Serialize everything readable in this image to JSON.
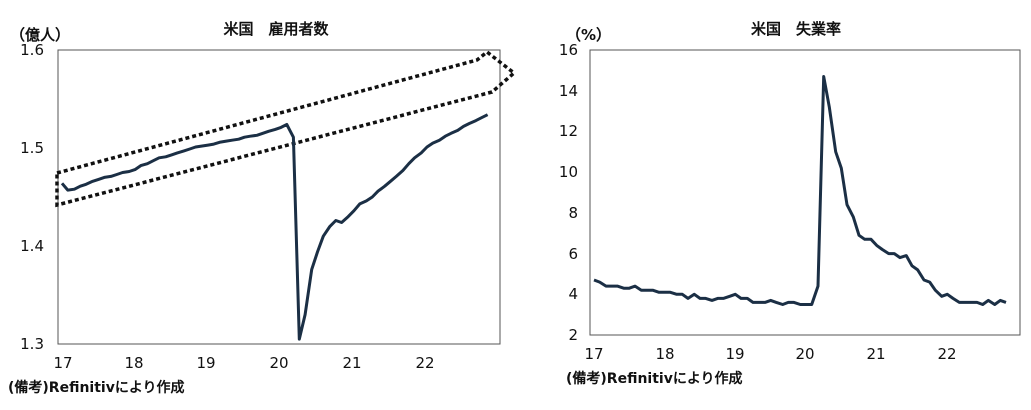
{
  "chart_data": [
    {
      "type": "line",
      "title": "米国　雇用者数",
      "ylabel": "（億人）",
      "ylim": [
        1.3,
        1.6
      ],
      "yticks": [
        "1.3",
        "1.4",
        "1.5",
        "1.6"
      ],
      "xlim": [
        17,
        23
      ],
      "xticks": [
        "17",
        "18",
        "19",
        "20",
        "21",
        "22"
      ],
      "grid": false,
      "line_color": "#1b2f45",
      "annotation": "dotted parallelogram band (trend channel) ending in an arrow tip",
      "source": "(備考)Refinitivにより作成",
      "series": [
        {
          "x": [
            17.0,
            17.08,
            17.17,
            17.25,
            17.33,
            17.42,
            17.5,
            17.58,
            17.67,
            17.75,
            17.83,
            17.92,
            18.0,
            18.08,
            18.17,
            18.25,
            18.33,
            18.42,
            18.5,
            18.58,
            18.67,
            18.75,
            18.83,
            18.92,
            19.0,
            19.08,
            19.17,
            19.25,
            19.33,
            19.42,
            19.5,
            19.58,
            19.67,
            19.75,
            19.83,
            19.92,
            20.0,
            20.08,
            20.17,
            20.25,
            20.33,
            20.42,
            20.5,
            20.58,
            20.67,
            20.75,
            20.83,
            20.92,
            21.0,
            21.08,
            21.17,
            21.25,
            21.33,
            21.42,
            21.5,
            21.58,
            21.67,
            21.75,
            21.83,
            21.92,
            22.0,
            22.08,
            22.17,
            22.25,
            22.33,
            22.42,
            22.5,
            22.58,
            22.67,
            22.75,
            22.83
          ],
          "y": [
            1.464,
            1.457,
            1.458,
            1.461,
            1.463,
            1.466,
            1.468,
            1.47,
            1.471,
            1.473,
            1.475,
            1.476,
            1.478,
            1.482,
            1.484,
            1.487,
            1.49,
            1.491,
            1.493,
            1.495,
            1.497,
            1.499,
            1.501,
            1.502,
            1.503,
            1.504,
            1.506,
            1.507,
            1.508,
            1.509,
            1.511,
            1.512,
            1.513,
            1.515,
            1.517,
            1.519,
            1.521,
            1.524,
            1.511,
            1.305,
            1.33,
            1.376,
            1.394,
            1.41,
            1.42,
            1.426,
            1.424,
            1.43,
            1.436,
            1.443,
            1.446,
            1.45,
            1.456,
            1.461,
            1.466,
            1.471,
            1.477,
            1.484,
            1.49,
            1.495,
            1.501,
            1.505,
            1.508,
            1.512,
            1.515,
            1.518,
            1.522,
            1.525,
            1.528,
            1.531,
            1.534
          ]
        }
      ]
    },
    {
      "type": "line",
      "title": "米国　失業率",
      "ylabel": "（%）",
      "ylim": [
        2,
        16
      ],
      "yticks": [
        "2",
        "4",
        "6",
        "8",
        "10",
        "12",
        "14",
        "16"
      ],
      "xlim": [
        17,
        23
      ],
      "xticks": [
        "17",
        "18",
        "19",
        "20",
        "21",
        "22"
      ],
      "grid": false,
      "line_color": "#1b2f45",
      "source": "(備考)Refinitivにより作成",
      "series": [
        {
          "x": [
            17.0,
            17.08,
            17.17,
            17.25,
            17.33,
            17.42,
            17.5,
            17.58,
            17.67,
            17.75,
            17.83,
            17.92,
            18.0,
            18.08,
            18.17,
            18.25,
            18.33,
            18.42,
            18.5,
            18.58,
            18.67,
            18.75,
            18.83,
            18.92,
            19.0,
            19.08,
            19.17,
            19.25,
            19.33,
            19.42,
            19.5,
            19.58,
            19.67,
            19.75,
            19.83,
            19.92,
            20.0,
            20.08,
            20.17,
            20.25,
            20.33,
            20.42,
            20.5,
            20.58,
            20.67,
            20.75,
            20.83,
            20.92,
            21.0,
            21.08,
            21.17,
            21.25,
            21.33,
            21.42,
            21.5,
            21.58,
            21.67,
            21.75,
            21.83,
            21.92,
            22.0,
            22.08,
            22.17,
            22.25,
            22.33,
            22.42,
            22.5,
            22.58,
            22.67,
            22.75,
            22.83
          ],
          "y": [
            4.7,
            4.6,
            4.4,
            4.4,
            4.4,
            4.3,
            4.3,
            4.4,
            4.2,
            4.2,
            4.2,
            4.1,
            4.1,
            4.1,
            4.0,
            4.0,
            3.8,
            4.0,
            3.8,
            3.8,
            3.7,
            3.8,
            3.8,
            3.9,
            4.0,
            3.8,
            3.8,
            3.6,
            3.6,
            3.6,
            3.7,
            3.6,
            3.5,
            3.6,
            3.6,
            3.5,
            3.5,
            3.5,
            4.4,
            14.7,
            13.2,
            11.0,
            10.2,
            8.4,
            7.8,
            6.9,
            6.7,
            6.7,
            6.4,
            6.2,
            6.0,
            6.0,
            5.8,
            5.9,
            5.4,
            5.2,
            4.7,
            4.6,
            4.2,
            3.9,
            4.0,
            3.8,
            3.6,
            3.6,
            3.6,
            3.6,
            3.5,
            3.7,
            3.5,
            3.7,
            3.6
          ]
        }
      ]
    }
  ]
}
